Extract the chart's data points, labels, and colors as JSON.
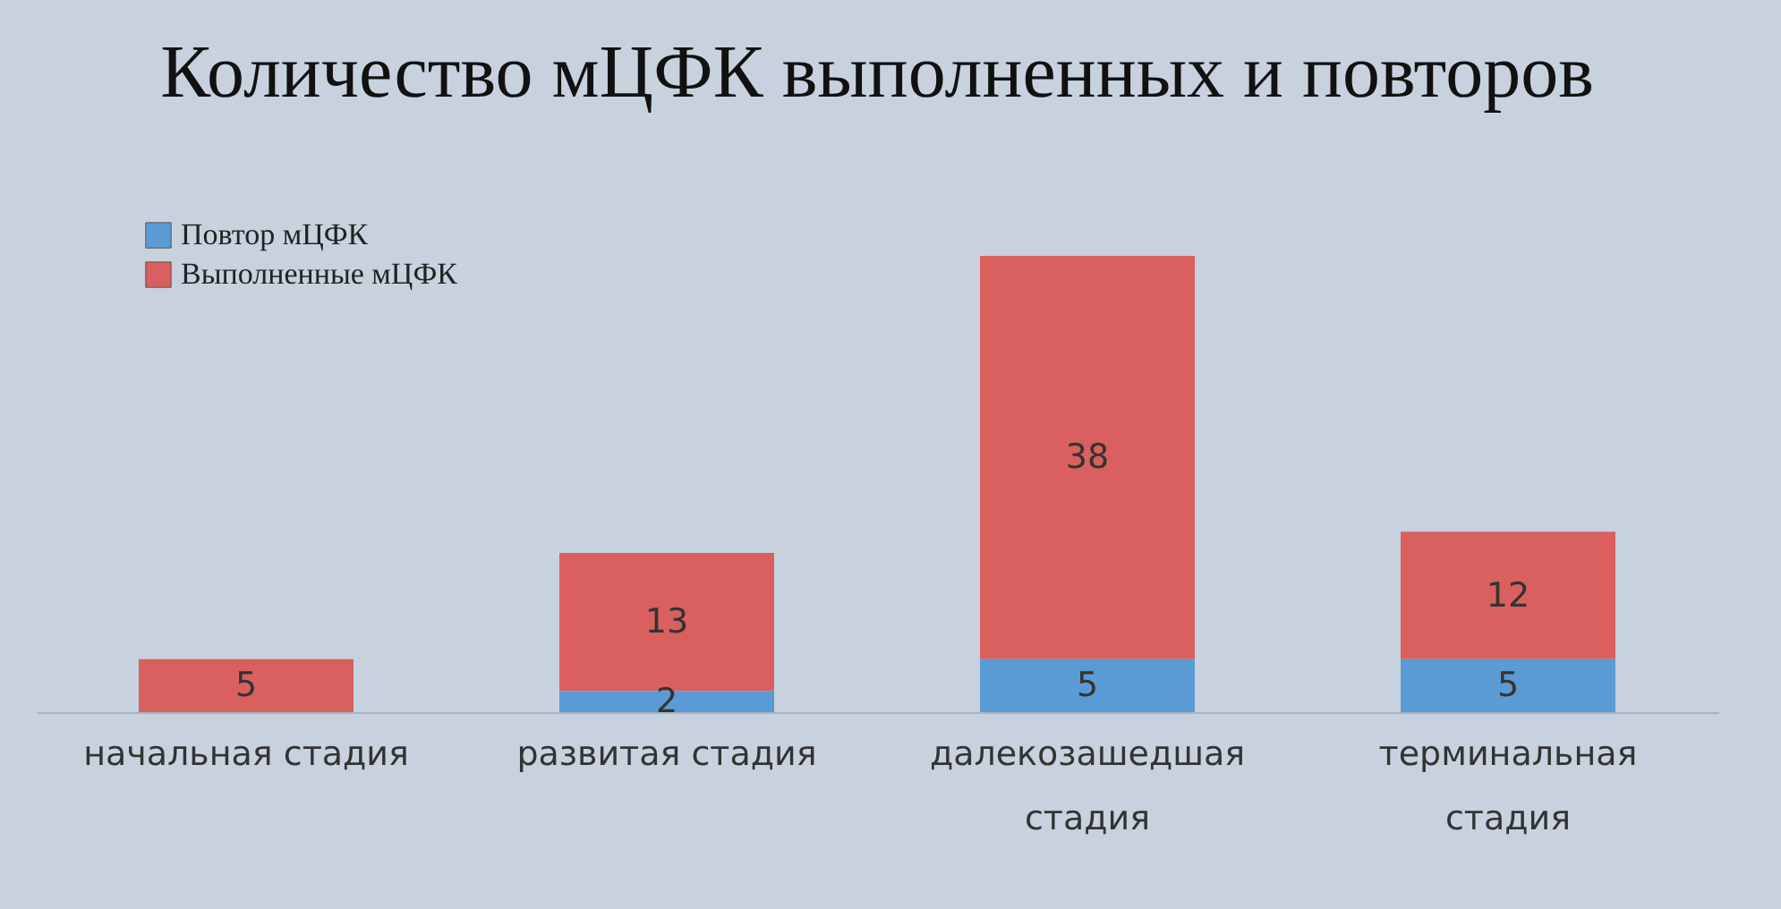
{
  "chart_data": {
    "type": "bar",
    "title": "Количество мЦФК выполненных и повторов",
    "categories": [
      "начальная стадия",
      "развитая стадия",
      "далекозашедшая стадия",
      "терминальная стадия"
    ],
    "stacked": true,
    "data_labels": true,
    "legend": "top left",
    "series": [
      {
        "name": "Повтор мЦФК",
        "color": "#5b9bd5",
        "values": [
          null,
          2,
          5,
          5
        ]
      },
      {
        "name": "Выполненные мЦФК",
        "color": "#d9605f",
        "values": [
          5,
          13,
          38,
          12
        ]
      }
    ]
  }
}
